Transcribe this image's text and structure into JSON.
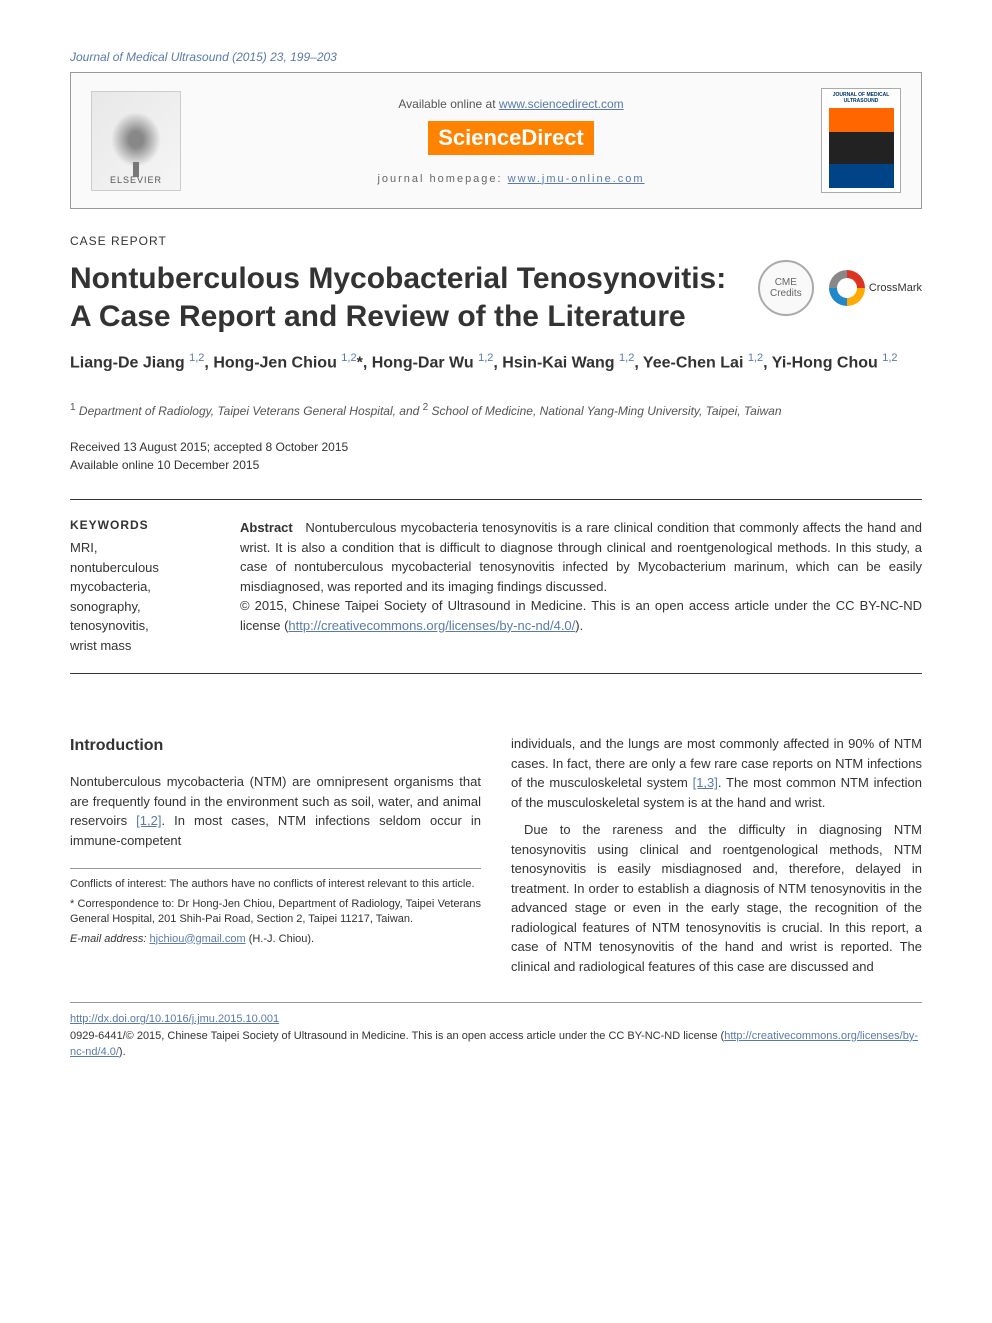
{
  "journal_ref": "Journal of Medical Ultrasound (2015) 23, 199–203",
  "header": {
    "available_text": "Available online at ",
    "available_url": "www.sciencedirect.com",
    "sd_logo": "ScienceDirect",
    "elsevier": "ELSEVIER",
    "homepage_label": "journal homepage: ",
    "homepage_url": "www.jmu-online.com",
    "cover_title": "JOURNAL OF MEDICAL ULTRASOUND"
  },
  "article_type": "CASE REPORT",
  "title": "Nontuberculous Mycobacterial Tenosynovitis: A Case Report and Review of the Literature",
  "badges": {
    "cme_line1": "CME",
    "cme_line2": "Credits",
    "crossmark": "CrossMark"
  },
  "authors_html": "Liang-De Jiang <sup>1,2</sup>, Hong-Jen Chiou <sup>1,2</sup>*, Hong-Dar Wu <sup>1,2</sup>, Hsin-Kai Wang <sup>1,2</sup>, Yee-Chen Lai <sup>1,2</sup>, Yi-Hong Chou <sup>1,2</sup>",
  "affiliations": "<sup>1</sup> Department of Radiology, Taipei Veterans General Hospital, and <sup>2</sup> School of Medicine, National Yang-Ming University, Taipei, Taiwan",
  "dates": {
    "received": "Received 13 August 2015; accepted 8 October 2015",
    "online": "Available online 10 December 2015"
  },
  "keywords": {
    "heading": "KEYWORDS",
    "list": "MRI,\nnontuberculous\n  mycobacteria,\nsonography,\ntenosynovitis,\nwrist mass"
  },
  "abstract": {
    "label": "Abstract",
    "text": "Nontuberculous mycobacteria tenosynovitis is a rare clinical condition that commonly affects the hand and wrist. It is also a condition that is difficult to diagnose through clinical and roentgenological methods. In this study, a case of nontuberculous mycobacterial tenosynovitis infected by Mycobacterium marinum, which can be easily misdiagnosed, was reported and its imaging findings discussed.",
    "copyright": "© 2015, Chinese Taipei Society of Ultrasound in Medicine. This is an open access article under the CC BY-NC-ND license (",
    "license_url": "http://creativecommons.org/licenses/by-nc-nd/4.0/",
    "copyright_end": ")."
  },
  "intro": {
    "heading": "Introduction",
    "p1_a": "Nontuberculous mycobacteria (NTM) are omnipresent organisms that are frequently found in the environment such as soil, water, and animal reservoirs ",
    "p1_ref": "[1,2]",
    "p1_b": ". In most cases, NTM infections seldom occur in immune-competent"
  },
  "col2": {
    "p1_a": "individuals, and the lungs are most commonly affected in 90% of NTM cases. In fact, there are only a few rare case reports on NTM infections of the musculoskeletal system ",
    "p1_ref": "[1,3]",
    "p1_b": ". The most common NTM infection of the musculoskeletal system is at the hand and wrist.",
    "p2": "Due to the rareness and the difficulty in diagnosing NTM tenosynovitis using clinical and roentgenological methods, NTM tenosynovitis is easily misdiagnosed and, therefore, delayed in treatment. In order to establish a diagnosis of NTM tenosynovitis in the advanced stage or even in the early stage, the recognition of the radiological features of NTM tenosynovitis is crucial. In this report, a case of NTM tenosynovitis of the hand and wrist is reported. The clinical and radiological features of this case are discussed and"
  },
  "footnotes": {
    "conflicts": "Conflicts of interest: The authors have no conflicts of interest relevant to this article.",
    "correspondence": "* Correspondence to: Dr Hong-Jen Chiou, Department of Radiology, Taipei Veterans General Hospital, 201 Shih-Pai Road, Section 2, Taipei 11217, Taiwan.",
    "email_label": "E-mail address: ",
    "email": "hjchiou@gmail.com",
    "email_name": " (H.-J. Chiou)."
  },
  "footer": {
    "doi": "http://dx.doi.org/10.1016/j.jmu.2015.10.001",
    "copyright_a": "0929-6441/© 2015, Chinese Taipei Society of Ultrasound in Medicine. This is an open access article under the CC BY-NC-ND license (",
    "license_url": "http://creativecommons.org/licenses/by-nc-nd/4.0/",
    "copyright_b": ")."
  }
}
